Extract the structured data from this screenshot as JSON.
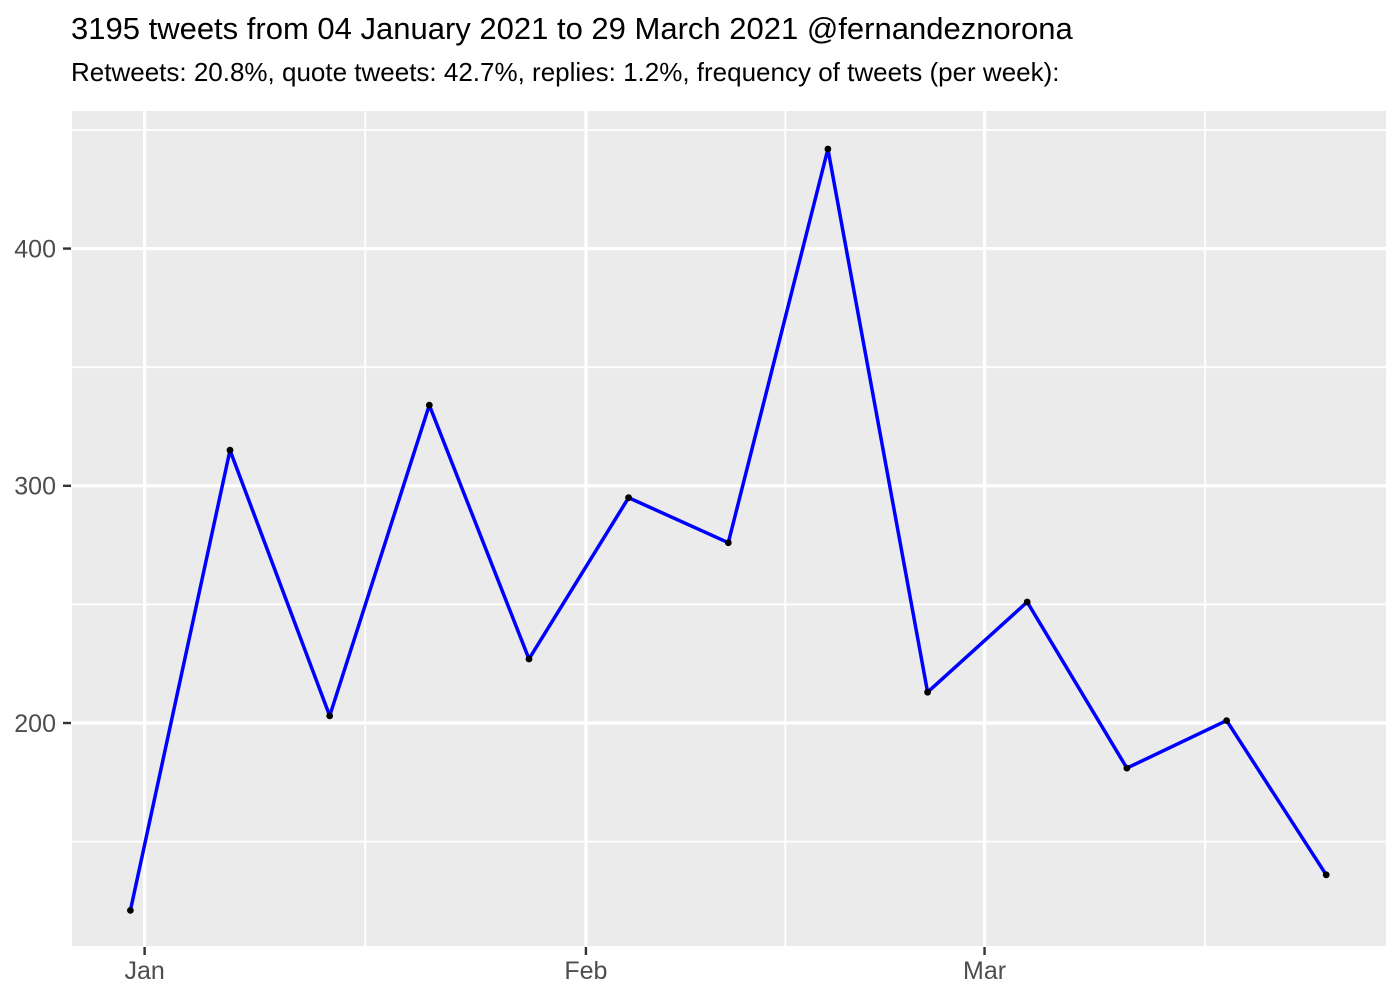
{
  "header": {
    "title": "3195 tweets from 04 January 2021 to 29 March 2021 @fernandeznorona",
    "subtitle": "Retweets: 20.8%, quote tweets: 42.7%, replies: 1.2%, frequency of tweets (per week):"
  },
  "chart_data": {
    "type": "line",
    "title": "3195 tweets from 04 January 2021 to 29 March 2021 @fernandeznorona",
    "subtitle": "Retweets: 20.8%, quote tweets: 42.7%, replies: 1.2%, frequency of tweets (per week):",
    "series_name": "frequency of tweets (per week)",
    "xlabel": "",
    "ylabel": "",
    "x_unit": "days since 2021-01-01",
    "x_dates": [
      "2020-12-31",
      "2021-01-07",
      "2021-01-14",
      "2021-01-21",
      "2021-01-28",
      "2021-02-04",
      "2021-02-11",
      "2021-02-18",
      "2021-02-25",
      "2021-03-04",
      "2021-03-11",
      "2021-03-18",
      "2021-03-25"
    ],
    "x": [
      -1,
      6,
      13,
      20,
      27,
      34,
      41,
      48,
      55,
      62,
      69,
      76,
      83
    ],
    "values": [
      121,
      315,
      203,
      334,
      227,
      295,
      276,
      442,
      213,
      251,
      181,
      201,
      136
    ],
    "xlim": [
      -5.1,
      87.2
    ],
    "ylim": [
      106,
      458
    ],
    "x_ticks": [
      {
        "day": 0,
        "label": "Jan"
      },
      {
        "day": 31,
        "label": "Feb"
      },
      {
        "day": 59,
        "label": "Mar"
      }
    ],
    "x_minor_ticks": [
      15.5,
      45,
      74.5
    ],
    "y_ticks": [
      200,
      300,
      400
    ],
    "y_minor_ticks": [
      150,
      250,
      350,
      450
    ],
    "grid": "major+minor",
    "legend": "none",
    "point_marker": "filled-circle",
    "colors": {
      "line": "#0000FF",
      "point": "#000000",
      "panel_bg": "#EBEBEB",
      "grid": "#FFFFFF",
      "axis_text": "#4D4D4D",
      "tick_mark": "#333333",
      "title_text": "#000000",
      "outer_bg": "#FFFFFF"
    }
  }
}
